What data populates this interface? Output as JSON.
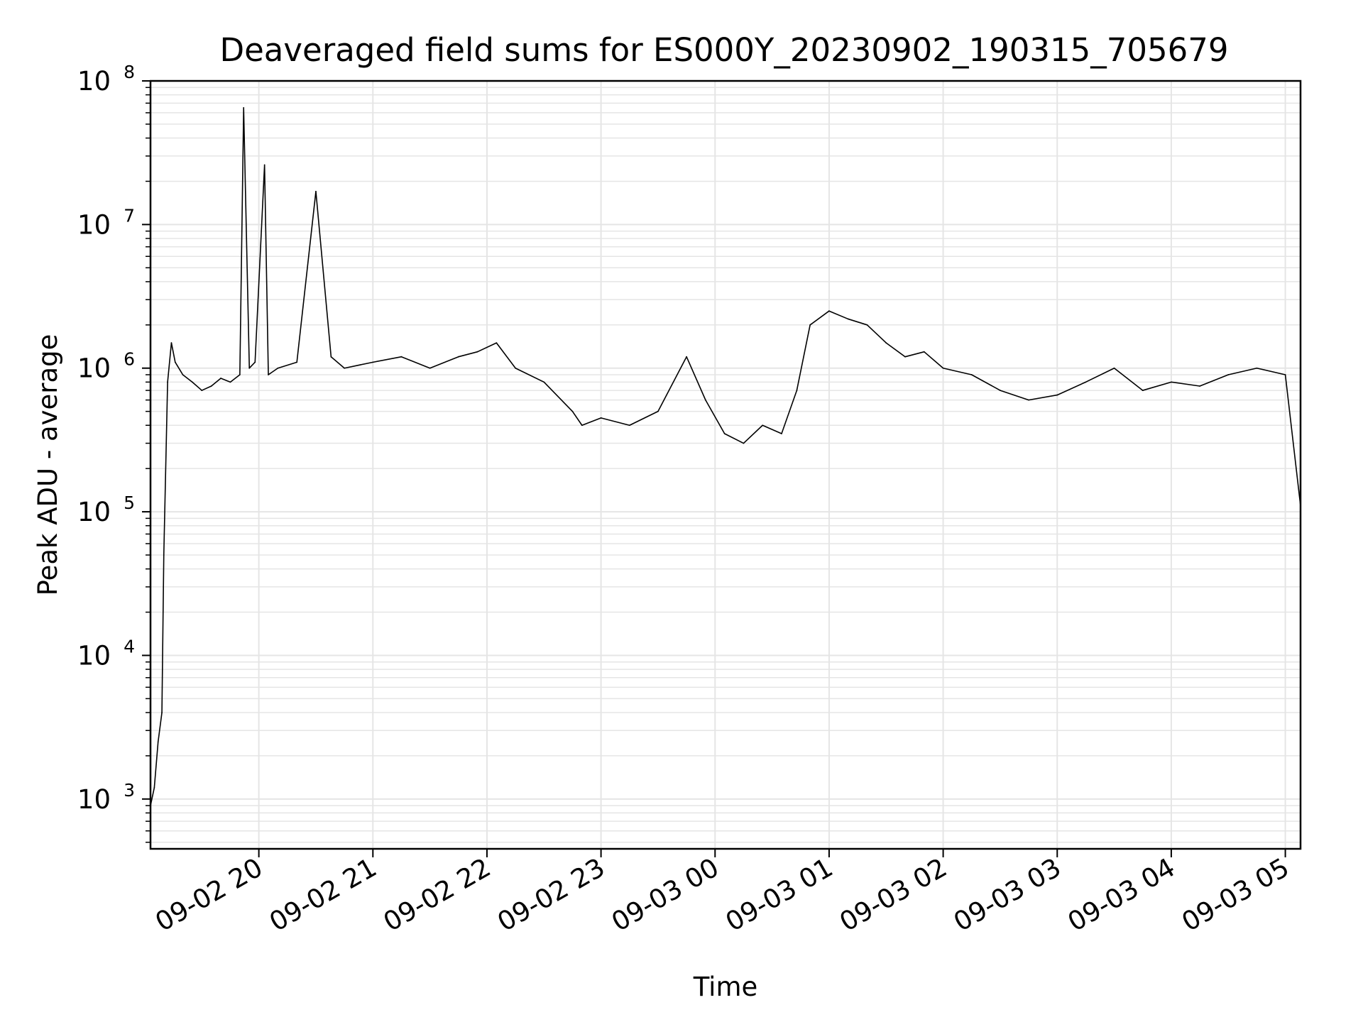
{
  "chart_data": {
    "type": "line",
    "title": "Deaveraged field sums for ES000Y_20230902_190315_705679",
    "xlabel": "Time",
    "ylabel": "Peak ADU - average",
    "yscale": "log",
    "ylim": [
      450,
      100000000
    ],
    "xlim": [
      "2023-09-02 19:03",
      "2023-09-03 05:08"
    ],
    "grid": true,
    "line_color": "#000000",
    "grid_color": "#e5e5e5",
    "x_ticks": [
      {
        "value": "2023-09-02 20:00",
        "label": "09-02 20"
      },
      {
        "value": "2023-09-02 21:00",
        "label": "09-02 21"
      },
      {
        "value": "2023-09-02 22:00",
        "label": "09-02 22"
      },
      {
        "value": "2023-09-02 23:00",
        "label": "09-02 23"
      },
      {
        "value": "2023-09-03 00:00",
        "label": "09-03 00"
      },
      {
        "value": "2023-09-03 01:00",
        "label": "09-03 01"
      },
      {
        "value": "2023-09-03 02:00",
        "label": "09-03 02"
      },
      {
        "value": "2023-09-03 03:00",
        "label": "09-03 03"
      },
      {
        "value": "2023-09-03 04:00",
        "label": "09-03 04"
      },
      {
        "value": "2023-09-03 05:00",
        "label": "09-03 05"
      }
    ],
    "y_ticks": [
      {
        "value": 1000,
        "base": "10",
        "exp": "3"
      },
      {
        "value": 10000,
        "base": "10",
        "exp": "4"
      },
      {
        "value": 100000,
        "base": "10",
        "exp": "5"
      },
      {
        "value": 1000000,
        "base": "10",
        "exp": "6"
      },
      {
        "value": 10000000,
        "base": "10",
        "exp": "7"
      },
      {
        "value": 100000000,
        "base": "10",
        "exp": "8"
      }
    ],
    "series": [
      {
        "x": [
          "2023-09-02 19:03",
          "2023-09-02 19:05",
          "2023-09-02 19:07",
          "2023-09-02 19:09",
          "2023-09-02 19:10",
          "2023-09-02 19:12",
          "2023-09-02 19:14",
          "2023-09-02 19:16",
          "2023-09-02 19:20",
          "2023-09-02 19:25",
          "2023-09-02 19:30",
          "2023-09-02 19:35",
          "2023-09-02 19:40",
          "2023-09-02 19:45",
          "2023-09-02 19:50",
          "2023-09-02 19:52",
          "2023-09-02 19:55",
          "2023-09-02 19:58",
          "2023-09-02 20:03",
          "2023-09-02 20:05",
          "2023-09-02 20:10",
          "2023-09-02 20:20",
          "2023-09-02 20:30",
          "2023-09-02 20:38",
          "2023-09-02 20:45",
          "2023-09-02 21:00",
          "2023-09-02 21:15",
          "2023-09-02 21:30",
          "2023-09-02 21:45",
          "2023-09-02 21:55",
          "2023-09-02 22:05",
          "2023-09-02 22:15",
          "2023-09-02 22:30",
          "2023-09-02 22:45",
          "2023-09-02 22:50",
          "2023-09-02 23:00",
          "2023-09-02 23:15",
          "2023-09-02 23:30",
          "2023-09-02 23:45",
          "2023-09-02 23:55",
          "2023-09-03 00:05",
          "2023-09-03 00:15",
          "2023-09-03 00:25",
          "2023-09-03 00:35",
          "2023-09-03 00:43",
          "2023-09-03 00:50",
          "2023-09-03 01:00",
          "2023-09-03 01:10",
          "2023-09-03 01:20",
          "2023-09-03 01:30",
          "2023-09-03 01:40",
          "2023-09-03 01:50",
          "2023-09-03 02:00",
          "2023-09-03 02:15",
          "2023-09-03 02:30",
          "2023-09-03 02:45",
          "2023-09-03 03:00",
          "2023-09-03 03:15",
          "2023-09-03 03:30",
          "2023-09-03 03:45",
          "2023-09-03 04:00",
          "2023-09-03 04:15",
          "2023-09-03 04:30",
          "2023-09-03 04:45",
          "2023-09-03 05:00",
          "2023-09-03 05:08"
        ],
        "y": [
          900,
          1200,
          2500,
          4000,
          50000,
          800000,
          1500000,
          1100000,
          900000,
          800000,
          700000,
          750000,
          850000,
          800000,
          900000,
          65000000,
          1000000,
          1100000,
          26000000,
          900000,
          1000000,
          1100000,
          17000000,
          1200000,
          1000000,
          1100000,
          1200000,
          1000000,
          1200000,
          1300000,
          1500000,
          1000000,
          800000,
          500000,
          400000,
          450000,
          400000,
          500000,
          1200000,
          600000,
          350000,
          300000,
          400000,
          350000,
          700000,
          2000000,
          2500000,
          2200000,
          2000000,
          1500000,
          1200000,
          1300000,
          1000000,
          900000,
          700000,
          600000,
          650000,
          800000,
          1000000,
          700000,
          800000,
          750000,
          900000,
          1000000,
          900000,
          110000
        ]
      }
    ]
  }
}
